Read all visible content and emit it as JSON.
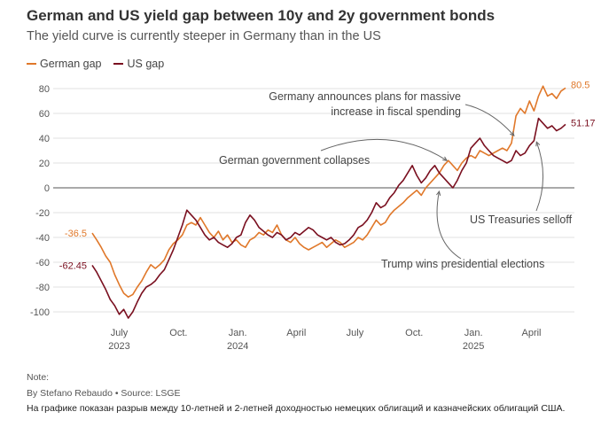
{
  "header": {
    "title": "German and US yield gap between 10y and 2y government bonds",
    "subtitle": "The yield curve is currently steeper in Germany than in the US"
  },
  "footer": {
    "note": "Note:",
    "byline": "By Stefano Rebaudo • Source: LSGE",
    "caption": "На графике показан разрыв между 10-летней и 2-летней доходностью немецких облигаций и казначейских облигаций США."
  },
  "chart_data": {
    "type": "line",
    "title": "German and US yield gap between 10y and 2y government bonds",
    "subtitle": "The yield curve is currently steeper in Germany than in the US",
    "xlabel": "",
    "ylabel": "",
    "ylim": [
      -100,
      80
    ],
    "yticks": [
      80,
      60,
      40,
      20,
      0,
      -20,
      -40,
      -60,
      -80,
      -100
    ],
    "grid": true,
    "legend": "top-left",
    "xticks": [
      {
        "label": "July",
        "year": "2023",
        "date": "2023-07-01"
      },
      {
        "label": "Oct.",
        "year": "",
        "date": "2023-10-01"
      },
      {
        "label": "Jan.",
        "year": "2024",
        "date": "2024-01-01"
      },
      {
        "label": "April",
        "year": "",
        "date": "2024-04-01"
      },
      {
        "label": "July",
        "year": "",
        "date": "2024-07-01"
      },
      {
        "label": "Oct.",
        "year": "",
        "date": "2024-10-01"
      },
      {
        "label": "Jan.",
        "year": "2025",
        "date": "2025-01-01"
      },
      {
        "label": "April",
        "year": "",
        "date": "2025-04-01"
      }
    ],
    "series": [
      {
        "name": "German gap",
        "color": "#e0782a",
        "start_label": "-36.5",
        "end_label": "80.5",
        "points": [
          [
            "2023-05-20",
            -36.5
          ],
          [
            "2023-05-27",
            -42
          ],
          [
            "2023-06-03",
            -48
          ],
          [
            "2023-06-10",
            -55
          ],
          [
            "2023-06-17",
            -60
          ],
          [
            "2023-06-24",
            -70
          ],
          [
            "2023-07-01",
            -78
          ],
          [
            "2023-07-08",
            -85
          ],
          [
            "2023-07-15",
            -88
          ],
          [
            "2023-07-22",
            -86
          ],
          [
            "2023-07-29",
            -80
          ],
          [
            "2023-08-05",
            -75
          ],
          [
            "2023-08-12",
            -68
          ],
          [
            "2023-08-19",
            -62
          ],
          [
            "2023-08-26",
            -65
          ],
          [
            "2023-09-02",
            -62
          ],
          [
            "2023-09-09",
            -58
          ],
          [
            "2023-09-16",
            -50
          ],
          [
            "2023-09-23",
            -45
          ],
          [
            "2023-09-30",
            -42
          ],
          [
            "2023-10-07",
            -38
          ],
          [
            "2023-10-14",
            -30
          ],
          [
            "2023-10-21",
            -28
          ],
          [
            "2023-10-28",
            -30
          ],
          [
            "2023-11-04",
            -24
          ],
          [
            "2023-11-11",
            -30
          ],
          [
            "2023-11-18",
            -36
          ],
          [
            "2023-11-25",
            -40
          ],
          [
            "2023-12-02",
            -35
          ],
          [
            "2023-12-09",
            -42
          ],
          [
            "2023-12-16",
            -38
          ],
          [
            "2023-12-23",
            -44
          ],
          [
            "2023-12-30",
            -42
          ],
          [
            "2024-01-06",
            -46
          ],
          [
            "2024-01-13",
            -48
          ],
          [
            "2024-01-20",
            -42
          ],
          [
            "2024-01-27",
            -40
          ],
          [
            "2024-02-03",
            -36
          ],
          [
            "2024-02-10",
            -38
          ],
          [
            "2024-02-17",
            -34
          ],
          [
            "2024-02-24",
            -36
          ],
          [
            "2024-03-02",
            -30
          ],
          [
            "2024-03-09",
            -38
          ],
          [
            "2024-03-16",
            -42
          ],
          [
            "2024-03-23",
            -44
          ],
          [
            "2024-03-30",
            -40
          ],
          [
            "2024-04-06",
            -45
          ],
          [
            "2024-04-13",
            -48
          ],
          [
            "2024-04-20",
            -50
          ],
          [
            "2024-04-27",
            -48
          ],
          [
            "2024-05-04",
            -46
          ],
          [
            "2024-05-11",
            -44
          ],
          [
            "2024-05-18",
            -48
          ],
          [
            "2024-05-25",
            -45
          ],
          [
            "2024-06-01",
            -42
          ],
          [
            "2024-06-08",
            -44
          ],
          [
            "2024-06-15",
            -48
          ],
          [
            "2024-06-22",
            -46
          ],
          [
            "2024-06-29",
            -44
          ],
          [
            "2024-07-06",
            -40
          ],
          [
            "2024-07-13",
            -42
          ],
          [
            "2024-07-20",
            -38
          ],
          [
            "2024-07-27",
            -32
          ],
          [
            "2024-08-03",
            -26
          ],
          [
            "2024-08-10",
            -30
          ],
          [
            "2024-08-17",
            -28
          ],
          [
            "2024-08-24",
            -22
          ],
          [
            "2024-08-31",
            -18
          ],
          [
            "2024-09-07",
            -15
          ],
          [
            "2024-09-14",
            -12
          ],
          [
            "2024-09-21",
            -8
          ],
          [
            "2024-09-28",
            -5
          ],
          [
            "2024-10-05",
            -2
          ],
          [
            "2024-10-12",
            -6
          ],
          [
            "2024-10-19",
            0
          ],
          [
            "2024-10-26",
            4
          ],
          [
            "2024-11-02",
            8
          ],
          [
            "2024-11-09",
            12
          ],
          [
            "2024-11-16",
            18
          ],
          [
            "2024-11-23",
            22
          ],
          [
            "2024-11-30",
            18
          ],
          [
            "2024-12-07",
            14
          ],
          [
            "2024-12-14",
            20
          ],
          [
            "2024-12-21",
            24
          ],
          [
            "2024-12-28",
            26
          ],
          [
            "2025-01-04",
            24
          ],
          [
            "2025-01-11",
            30
          ],
          [
            "2025-01-18",
            28
          ],
          [
            "2025-01-25",
            26
          ],
          [
            "2025-02-01",
            28
          ],
          [
            "2025-02-08",
            30
          ],
          [
            "2025-02-15",
            32
          ],
          [
            "2025-02-22",
            30
          ],
          [
            "2025-03-01",
            36
          ],
          [
            "2025-03-08",
            58
          ],
          [
            "2025-03-15",
            64
          ],
          [
            "2025-03-22",
            60
          ],
          [
            "2025-03-29",
            70
          ],
          [
            "2025-04-05",
            62
          ],
          [
            "2025-04-12",
            74
          ],
          [
            "2025-04-19",
            82
          ],
          [
            "2025-04-26",
            74
          ],
          [
            "2025-05-03",
            76
          ],
          [
            "2025-05-10",
            72
          ],
          [
            "2025-05-17",
            78
          ],
          [
            "2025-05-24",
            80.5
          ]
        ]
      },
      {
        "name": "US gap",
        "color": "#7a1020",
        "start_label": "-62.45",
        "end_label": "51.17",
        "points": [
          [
            "2023-05-20",
            -62.45
          ],
          [
            "2023-05-27",
            -68
          ],
          [
            "2023-06-03",
            -75
          ],
          [
            "2023-06-10",
            -82
          ],
          [
            "2023-06-17",
            -90
          ],
          [
            "2023-06-24",
            -95
          ],
          [
            "2023-07-01",
            -102
          ],
          [
            "2023-07-08",
            -98
          ],
          [
            "2023-07-15",
            -105
          ],
          [
            "2023-07-22",
            -100
          ],
          [
            "2023-07-29",
            -92
          ],
          [
            "2023-08-05",
            -85
          ],
          [
            "2023-08-12",
            -80
          ],
          [
            "2023-08-19",
            -78
          ],
          [
            "2023-08-26",
            -75
          ],
          [
            "2023-09-02",
            -70
          ],
          [
            "2023-09-09",
            -66
          ],
          [
            "2023-09-16",
            -58
          ],
          [
            "2023-09-23",
            -50
          ],
          [
            "2023-09-30",
            -40
          ],
          [
            "2023-10-07",
            -30
          ],
          [
            "2023-10-14",
            -18
          ],
          [
            "2023-10-21",
            -22
          ],
          [
            "2023-10-28",
            -26
          ],
          [
            "2023-11-04",
            -32
          ],
          [
            "2023-11-11",
            -38
          ],
          [
            "2023-11-18",
            -42
          ],
          [
            "2023-11-25",
            -40
          ],
          [
            "2023-12-02",
            -44
          ],
          [
            "2023-12-09",
            -46
          ],
          [
            "2023-12-16",
            -48
          ],
          [
            "2023-12-23",
            -45
          ],
          [
            "2023-12-30",
            -40
          ],
          [
            "2024-01-06",
            -38
          ],
          [
            "2024-01-13",
            -28
          ],
          [
            "2024-01-20",
            -22
          ],
          [
            "2024-01-27",
            -26
          ],
          [
            "2024-02-03",
            -32
          ],
          [
            "2024-02-10",
            -35
          ],
          [
            "2024-02-17",
            -38
          ],
          [
            "2024-02-24",
            -40
          ],
          [
            "2024-03-02",
            -36
          ],
          [
            "2024-03-09",
            -38
          ],
          [
            "2024-03-16",
            -42
          ],
          [
            "2024-03-23",
            -40
          ],
          [
            "2024-03-30",
            -36
          ],
          [
            "2024-04-06",
            -38
          ],
          [
            "2024-04-13",
            -35
          ],
          [
            "2024-04-20",
            -32
          ],
          [
            "2024-04-27",
            -34
          ],
          [
            "2024-05-04",
            -38
          ],
          [
            "2024-05-11",
            -40
          ],
          [
            "2024-05-18",
            -42
          ],
          [
            "2024-05-25",
            -40
          ],
          [
            "2024-06-01",
            -44
          ],
          [
            "2024-06-08",
            -46
          ],
          [
            "2024-06-15",
            -45
          ],
          [
            "2024-06-22",
            -42
          ],
          [
            "2024-06-29",
            -38
          ],
          [
            "2024-07-06",
            -32
          ],
          [
            "2024-07-13",
            -30
          ],
          [
            "2024-07-20",
            -26
          ],
          [
            "2024-07-27",
            -20
          ],
          [
            "2024-08-03",
            -12
          ],
          [
            "2024-08-10",
            -16
          ],
          [
            "2024-08-17",
            -14
          ],
          [
            "2024-08-24",
            -8
          ],
          [
            "2024-08-31",
            -4
          ],
          [
            "2024-09-07",
            2
          ],
          [
            "2024-09-14",
            6
          ],
          [
            "2024-09-21",
            12
          ],
          [
            "2024-09-28",
            18
          ],
          [
            "2024-10-05",
            10
          ],
          [
            "2024-10-12",
            4
          ],
          [
            "2024-10-19",
            8
          ],
          [
            "2024-10-26",
            14
          ],
          [
            "2024-11-02",
            18
          ],
          [
            "2024-11-09",
            12
          ],
          [
            "2024-11-16",
            8
          ],
          [
            "2024-11-23",
            4
          ],
          [
            "2024-11-30",
            0
          ],
          [
            "2024-12-07",
            6
          ],
          [
            "2024-12-14",
            14
          ],
          [
            "2024-12-21",
            20
          ],
          [
            "2024-12-28",
            32
          ],
          [
            "2025-01-04",
            36
          ],
          [
            "2025-01-11",
            40
          ],
          [
            "2025-01-18",
            34
          ],
          [
            "2025-01-25",
            30
          ],
          [
            "2025-02-01",
            26
          ],
          [
            "2025-02-08",
            24
          ],
          [
            "2025-02-15",
            22
          ],
          [
            "2025-02-22",
            20
          ],
          [
            "2025-03-01",
            22
          ],
          [
            "2025-03-08",
            30
          ],
          [
            "2025-03-15",
            26
          ],
          [
            "2025-03-22",
            28
          ],
          [
            "2025-03-29",
            34
          ],
          [
            "2025-04-05",
            38
          ],
          [
            "2025-04-12",
            56
          ],
          [
            "2025-04-19",
            52
          ],
          [
            "2025-04-26",
            48
          ],
          [
            "2025-05-03",
            50
          ],
          [
            "2025-05-10",
            46
          ],
          [
            "2025-05-17",
            48
          ],
          [
            "2025-05-24",
            51.17
          ]
        ]
      }
    ],
    "annotations": [
      {
        "id": "fiscal",
        "lines": [
          "Germany announces plans for massive",
          "increase in fiscal spending"
        ],
        "date": "2025-03-05",
        "value": 42
      },
      {
        "id": "collapse",
        "lines": [
          "German government collapses"
        ],
        "date": "2024-11-07",
        "value": 22
      },
      {
        "id": "trump",
        "lines": [
          "Trump wins presidential elections"
        ],
        "date": "2024-11-06",
        "value": 0
      },
      {
        "id": "treasuries",
        "lines": [
          "US Treasuries selloff"
        ],
        "date": "2025-04-09",
        "value": 37
      }
    ]
  }
}
